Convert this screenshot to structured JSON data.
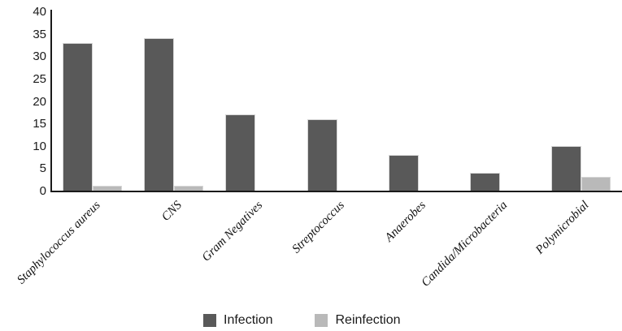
{
  "chart_data": {
    "type": "bar",
    "title": "",
    "xlabel": "",
    "ylabel": "",
    "categories": [
      "Staphylococcus aureus",
      "CNS",
      "Gram Negatives",
      "Streptococcus",
      "Anaerobes",
      "Candida/Microbacteria",
      "Polymicrobial"
    ],
    "series": [
      {
        "name": "Infection",
        "color": "#595959",
        "values": [
          33,
          34,
          17,
          16,
          8,
          4,
          10
        ]
      },
      {
        "name": "Reinfection",
        "color": "#b9b9b9",
        "values": [
          1,
          1,
          0,
          0,
          0,
          0,
          3
        ]
      }
    ],
    "ylim": [
      0,
      40
    ],
    "yticks": [
      0,
      5,
      10,
      15,
      20,
      25,
      30,
      35,
      40
    ],
    "grid": false,
    "legend_position": "bottom",
    "x_tick_label_rotation_deg": 45,
    "axis_color": "#1a1a1a"
  }
}
